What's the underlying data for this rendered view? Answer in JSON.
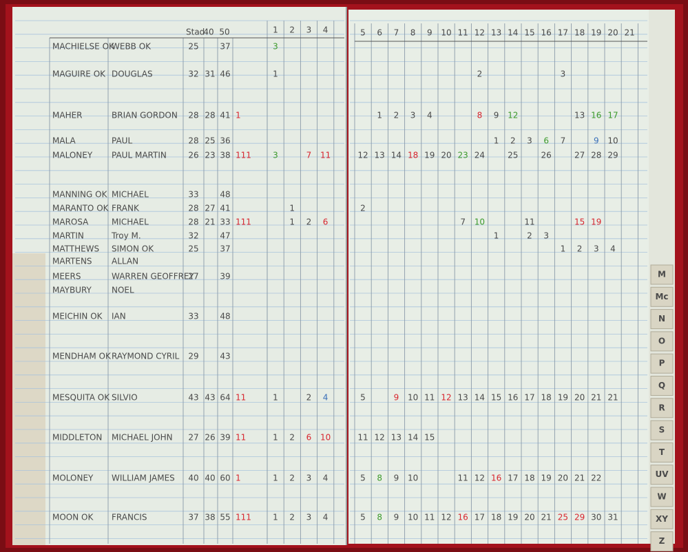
{
  "header": {
    "stad": "Stad",
    "col40": "40",
    "col50": "50"
  },
  "columns": [
    "1",
    "2",
    "3",
    "4",
    "5",
    "6",
    "7",
    "8",
    "9",
    "10",
    "11",
    "12",
    "13",
    "14",
    "15",
    "16",
    "17",
    "18",
    "19",
    "20",
    "21"
  ],
  "tabs": [
    "M",
    "Mc",
    "N",
    "O",
    "P",
    "Q",
    "R",
    "S",
    "T",
    "UV",
    "W",
    "XY",
    "Z"
  ],
  "rows": [
    {
      "surname": "MACHIELSE OK",
      "given": "WEBB OK",
      "stad": "25",
      "v40": null,
      "v50": "37",
      "mark": null,
      "cells": [
        {
          "text": "3",
          "color": "green"
        },
        null,
        null,
        null,
        null,
        null,
        null,
        null,
        null,
        null,
        null,
        null,
        null,
        null,
        null,
        null,
        null,
        null,
        null,
        null,
        null
      ]
    },
    {
      "surname": "MAGUIRE OK",
      "given": "DOUGLAS",
      "stad": "32",
      "v40": "31",
      "v50": "46",
      "mark": null,
      "cells": [
        "1",
        null,
        null,
        null,
        null,
        null,
        null,
        null,
        null,
        null,
        null,
        "2",
        null,
        null,
        null,
        null,
        "3",
        null,
        null,
        null,
        null
      ]
    },
    {
      "surname": "MAHER",
      "given": "BRIAN GORDON",
      "stad": "28",
      "v40": "28",
      "v50": "41",
      "mark": "1",
      "cells": [
        null,
        null,
        null,
        null,
        null,
        "1",
        "2",
        "3",
        "4",
        null,
        null,
        {
          "text": "8",
          "color": "red"
        },
        "9",
        {
          "text": "12",
          "color": "green"
        },
        null,
        null,
        null,
        "13",
        {
          "text": "16",
          "color": "green"
        },
        {
          "text": "17",
          "color": "green"
        },
        null
      ]
    },
    {
      "surname": "MALA",
      "given": "PAUL",
      "stad": "28",
      "v40": "25",
      "v50": "36",
      "mark": null,
      "cells": [
        null,
        null,
        null,
        null,
        null,
        null,
        null,
        null,
        null,
        null,
        null,
        null,
        "1",
        "2",
        "3",
        {
          "text": "6",
          "color": "green"
        },
        "7",
        null,
        {
          "text": "9",
          "color": "blue"
        },
        "10",
        null
      ]
    },
    {
      "surname": "MALONEY",
      "given": "PAUL MARTIN",
      "stad": "26",
      "v40": "23",
      "v50": "38",
      "mark": "111",
      "cells": [
        {
          "text": "3",
          "color": "green"
        },
        null,
        {
          "text": "7",
          "color": "red"
        },
        {
          "text": "11",
          "color": "red"
        },
        "12",
        "13",
        "14",
        {
          "text": "18",
          "color": "red"
        },
        "19",
        "20",
        {
          "text": "23",
          "color": "green"
        },
        "24",
        null,
        "25",
        null,
        "26",
        null,
        "27",
        "28",
        "29",
        null
      ]
    },
    {
      "surname": "MANNING OK",
      "given": "MICHAEL",
      "stad": "33",
      "v40": null,
      "v50": "48",
      "mark": null,
      "cells": [
        null,
        null,
        null,
        null,
        null,
        null,
        null,
        null,
        null,
        null,
        null,
        null,
        null,
        null,
        null,
        null,
        null,
        null,
        null,
        null,
        null
      ]
    },
    {
      "surname": "MARANTO OK",
      "given": "FRANK",
      "stad": "28",
      "v40": "27",
      "v50": "41",
      "mark": null,
      "cells": [
        null,
        "1",
        null,
        null,
        "2",
        null,
        null,
        null,
        null,
        null,
        null,
        null,
        null,
        null,
        null,
        null,
        null,
        null,
        null,
        null,
        null
      ]
    },
    {
      "surname": "MAROSA",
      "given": "MICHAEL",
      "stad": "28",
      "v40": "21",
      "v50": "33",
      "mark": "111",
      "cells": [
        null,
        "1",
        "2",
        {
          "text": "6",
          "color": "red"
        },
        null,
        null,
        null,
        null,
        null,
        null,
        "7",
        {
          "text": "10",
          "color": "green"
        },
        null,
        null,
        "11",
        null,
        null,
        {
          "text": "15",
          "color": "red"
        },
        {
          "text": "19",
          "color": "red"
        },
        null,
        null
      ]
    },
    {
      "surname": "MARTIN",
      "given": "Troy M.",
      "stad": "32",
      "v40": null,
      "v50": "47",
      "mark": null,
      "cells": [
        null,
        null,
        null,
        null,
        null,
        null,
        null,
        null,
        null,
        null,
        null,
        null,
        "1",
        null,
        "2",
        "3",
        null,
        null,
        null,
        null,
        null
      ]
    },
    {
      "surname": "MATTHEWS",
      "given": "SIMON OK",
      "stad": "25",
      "v40": null,
      "v50": "37",
      "mark": null,
      "cells": [
        null,
        null,
        null,
        null,
        null,
        null,
        null,
        null,
        null,
        null,
        null,
        null,
        null,
        null,
        null,
        null,
        "1",
        "2",
        "3",
        "4",
        null
      ]
    },
    {
      "surname": "MARTENS",
      "given": "ALLAN",
      "stad": null,
      "v40": null,
      "v50": null,
      "mark": null,
      "cells": [
        null,
        null,
        null,
        null,
        null,
        null,
        null,
        null,
        null,
        null,
        null,
        null,
        null,
        null,
        null,
        null,
        null,
        null,
        null,
        null,
        null
      ]
    },
    {
      "surname": "MEERS",
      "given": "WARREN GEOFFREY",
      "stad": "27",
      "v40": null,
      "v50": "39",
      "mark": null,
      "cells": [
        null,
        null,
        null,
        null,
        null,
        null,
        null,
        null,
        null,
        null,
        null,
        null,
        null,
        null,
        null,
        null,
        null,
        null,
        null,
        null,
        null
      ]
    },
    {
      "surname": "MAYBURY",
      "given": "NOEL",
      "stad": null,
      "v40": null,
      "v50": null,
      "mark": null,
      "cells": [
        null,
        null,
        null,
        null,
        null,
        null,
        null,
        null,
        null,
        null,
        null,
        null,
        null,
        null,
        null,
        null,
        null,
        null,
        null,
        null,
        null
      ]
    },
    {
      "surname": "MEICHIN OK",
      "given": "IAN",
      "stad": "33",
      "v40": null,
      "v50": "48",
      "mark": null,
      "cells": [
        null,
        null,
        null,
        null,
        null,
        null,
        null,
        null,
        null,
        null,
        null,
        null,
        null,
        null,
        null,
        null,
        null,
        null,
        null,
        null,
        null
      ]
    },
    {
      "surname": "MENDHAM OK",
      "given": "RAYMOND CYRIL",
      "stad": "29",
      "v40": null,
      "v50": "43",
      "mark": null,
      "cells": [
        null,
        null,
        null,
        null,
        null,
        null,
        null,
        null,
        null,
        null,
        null,
        null,
        null,
        null,
        null,
        null,
        null,
        null,
        null,
        null,
        null
      ]
    },
    {
      "surname": "MESQUITA OK",
      "given": "SILVIO",
      "stad": "43",
      "v40": "43",
      "v50": "64",
      "mark": "11",
      "cells": [
        "1",
        null,
        "2",
        {
          "text": "4",
          "color": "blue"
        },
        "5",
        null,
        {
          "text": "9",
          "color": "red"
        },
        "10",
        "11",
        {
          "text": "12",
          "color": "red"
        },
        "13",
        "14",
        "15",
        "16",
        "17",
        "18",
        "19",
        "20",
        "21",
        "21",
        null
      ]
    },
    {
      "surname": "MIDDLETON",
      "given": "MICHAEL JOHN",
      "stad": "27",
      "v40": "26",
      "v50": "39",
      "mark": "11",
      "cells": [
        "1",
        "2",
        {
          "text": "6",
          "color": "red"
        },
        {
          "text": "10",
          "color": "red"
        },
        "11",
        "12",
        "13",
        "14",
        "15",
        null,
        null,
        null,
        null,
        null,
        null,
        null,
        null,
        null,
        null,
        null,
        null
      ]
    },
    {
      "surname": "MOLONEY",
      "given": "WILLIAM JAMES",
      "stad": "40",
      "v40": "40",
      "v50": "60",
      "mark": "1",
      "cells": [
        "1",
        "2",
        "3",
        "4",
        "5",
        {
          "text": "8",
          "color": "green"
        },
        "9",
        "10",
        null,
        null,
        "11",
        "12",
        {
          "text": "16",
          "color": "red"
        },
        "17",
        "18",
        "19",
        "20",
        "21",
        "22",
        null,
        null
      ]
    },
    {
      "surname": "MOON OK",
      "given": "FRANCIS",
      "stad": "37",
      "v40": "38",
      "v50": "55",
      "mark": "111",
      "cells": [
        "1",
        "2",
        "3",
        "4",
        "5",
        {
          "text": "8",
          "color": "green"
        },
        "9",
        "10",
        "11",
        "12",
        {
          "text": "16",
          "color": "red"
        },
        "17",
        "18",
        "19",
        "20",
        "21",
        {
          "text": "25",
          "color": "red"
        },
        {
          "text": "29",
          "color": "red"
        },
        "30",
        "31",
        null
      ]
    }
  ]
}
